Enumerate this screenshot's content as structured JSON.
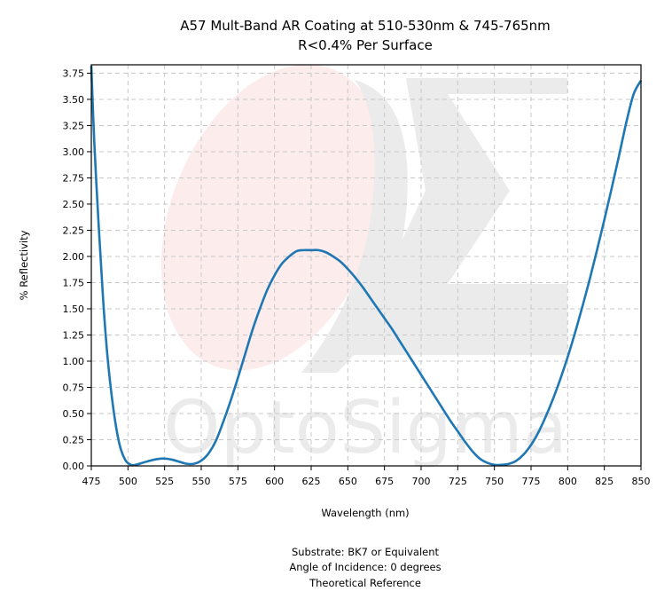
{
  "chart_data": {
    "type": "line",
    "title": "A57 Mult-Band AR Coating at 510-530nm & 745-765nm",
    "subtitle": "R<0.4% Per Surface",
    "xlabel": "Wavelength (nm)",
    "ylabel": "% Reflectivity",
    "xlim": [
      475,
      850
    ],
    "ylim": [
      0,
      3.83
    ],
    "x_ticks": [
      "475",
      "500",
      "525",
      "550",
      "575",
      "600",
      "625",
      "650",
      "675",
      "700",
      "725",
      "750",
      "775",
      "800",
      "825",
      "850"
    ],
    "y_ticks": [
      "0.00",
      "0.25",
      "0.50",
      "0.75",
      "1.00",
      "1.25",
      "1.50",
      "1.75",
      "2.00",
      "2.25",
      "2.50",
      "2.75",
      "3.00",
      "3.25",
      "3.50",
      "3.75"
    ],
    "grid": true,
    "series": [
      {
        "color": "#1f77b4",
        "x": [
          475,
          477,
          480,
          483,
          486,
          490,
          494,
          498,
          502,
          505,
          510,
          515,
          520,
          525,
          530,
          535,
          540,
          545,
          550,
          555,
          560,
          565,
          570,
          575,
          580,
          585,
          590,
          595,
          600,
          605,
          610,
          615,
          620,
          625,
          630,
          635,
          640,
          645,
          650,
          655,
          660,
          665,
          670,
          675,
          680,
          685,
          690,
          695,
          700,
          705,
          710,
          715,
          720,
          725,
          730,
          735,
          740,
          745,
          750,
          755,
          760,
          765,
          770,
          775,
          780,
          785,
          790,
          795,
          800,
          805,
          810,
          815,
          820,
          825,
          830,
          835,
          840,
          845,
          850
        ],
        "y": [
          3.82,
          3.1,
          2.3,
          1.6,
          1.05,
          0.55,
          0.22,
          0.06,
          0.01,
          0.01,
          0.03,
          0.05,
          0.065,
          0.07,
          0.06,
          0.04,
          0.02,
          0.02,
          0.05,
          0.12,
          0.24,
          0.42,
          0.62,
          0.84,
          1.07,
          1.3,
          1.5,
          1.68,
          1.82,
          1.93,
          2.0,
          2.05,
          2.06,
          2.06,
          2.06,
          2.04,
          2.0,
          1.95,
          1.88,
          1.8,
          1.71,
          1.61,
          1.51,
          1.41,
          1.31,
          1.2,
          1.09,
          0.98,
          0.87,
          0.76,
          0.65,
          0.54,
          0.43,
          0.33,
          0.23,
          0.14,
          0.07,
          0.03,
          0.01,
          0.01,
          0.02,
          0.05,
          0.11,
          0.2,
          0.32,
          0.47,
          0.64,
          0.83,
          1.04,
          1.27,
          1.52,
          1.78,
          2.06,
          2.35,
          2.65,
          2.96,
          3.28,
          3.55,
          3.68
        ]
      }
    ],
    "annotations": [
      "Substrate: BK7 or Equivalent",
      "Angle of Incidence: 0 degrees",
      "Theoretical Reference"
    ],
    "watermark": "OptoSigma"
  }
}
